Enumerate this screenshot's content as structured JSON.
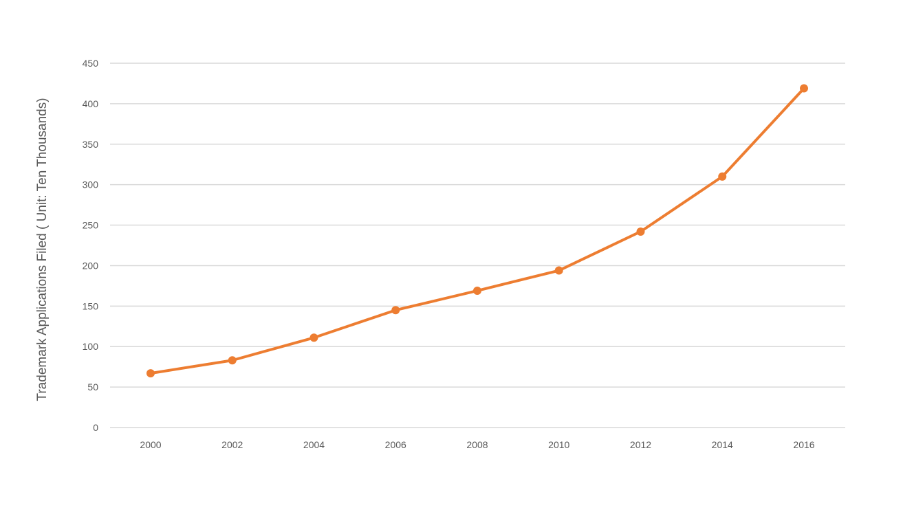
{
  "chart_data": {
    "type": "line",
    "title": "",
    "xlabel": "",
    "ylabel": "Trademark Applications Filed ( Unit: Ten Thousands)",
    "categories": [
      "2000",
      "2002",
      "2004",
      "2006",
      "2008",
      "2010",
      "2012",
      "2014",
      "2016"
    ],
    "series": [
      {
        "values": [
          67,
          83,
          111,
          145,
          169,
          194,
          242,
          310,
          419
        ]
      }
    ],
    "ylim": [
      0,
      450
    ],
    "yticks": [
      0,
      50,
      100,
      150,
      200,
      250,
      300,
      350,
      400,
      450
    ],
    "grid": "horizontal",
    "legend": "none",
    "line_color": "#ed7d31",
    "grid_color": "#d9d9d9"
  }
}
